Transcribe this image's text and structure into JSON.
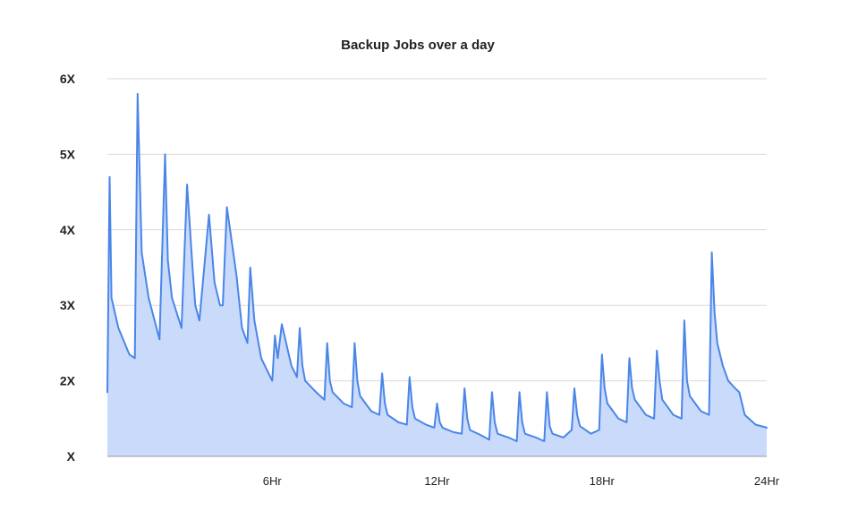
{
  "chart_data": {
    "type": "area",
    "title": "Backup Jobs over a day",
    "xlabel": "",
    "ylabel": "",
    "xlim": [
      0,
      24
    ],
    "ylim": [
      0,
      5
    ],
    "grid": true,
    "legend": "none",
    "y_ticks": [
      {
        "value": 0,
        "label": "X"
      },
      {
        "value": 1,
        "label": "2X"
      },
      {
        "value": 2,
        "label": "3X"
      },
      {
        "value": 3,
        "label": "4X"
      },
      {
        "value": 4,
        "label": "5X"
      },
      {
        "value": 5,
        "label": "6X"
      }
    ],
    "x_ticks": [
      {
        "value": 6,
        "label": "6Hr"
      },
      {
        "value": 12,
        "label": "12Hr"
      },
      {
        "value": 18,
        "label": "18Hr"
      },
      {
        "value": 24,
        "label": "24Hr"
      }
    ],
    "colors": {
      "line": "#4a86e8",
      "fill": "#c9dafb",
      "grid": "#dadada",
      "axis": "#9a9a9a",
      "text": "#222222"
    },
    "series": [
      {
        "x": [
          0.0,
          0.08,
          0.15,
          0.4,
          0.8,
          1.0,
          1.1,
          1.25,
          1.5,
          1.9,
          2.1,
          2.2,
          2.35,
          2.7,
          2.9,
          3.1,
          3.2,
          3.35,
          3.7,
          3.9,
          4.1,
          4.2,
          4.35,
          4.7,
          4.9,
          5.1,
          5.2,
          5.35,
          5.6,
          5.8,
          6.0,
          6.1,
          6.2,
          6.35,
          6.7,
          6.9,
          7.0,
          7.1,
          7.2,
          7.6,
          7.9,
          8.0,
          8.1,
          8.2,
          8.6,
          8.9,
          9.0,
          9.1,
          9.2,
          9.6,
          9.9,
          10.0,
          10.1,
          10.2,
          10.6,
          10.9,
          11.0,
          11.1,
          11.2,
          11.6,
          11.9,
          12.0,
          12.1,
          12.2,
          12.6,
          12.9,
          13.0,
          13.1,
          13.2,
          13.6,
          13.9,
          14.0,
          14.1,
          14.2,
          14.6,
          14.9,
          15.0,
          15.1,
          15.2,
          15.6,
          15.9,
          16.0,
          16.1,
          16.2,
          16.6,
          16.9,
          17.0,
          17.1,
          17.2,
          17.6,
          17.9,
          18.0,
          18.1,
          18.2,
          18.6,
          18.9,
          19.0,
          19.1,
          19.2,
          19.6,
          19.9,
          20.0,
          20.1,
          20.2,
          20.6,
          20.9,
          21.0,
          21.1,
          21.2,
          21.6,
          21.9,
          22.0,
          22.1,
          22.2,
          22.4,
          22.6,
          22.85,
          23.0,
          23.1,
          23.2,
          23.6,
          24.0
        ],
        "values": [
          0.85,
          3.7,
          2.1,
          1.7,
          1.35,
          1.3,
          4.8,
          2.7,
          2.1,
          1.55,
          4.0,
          2.6,
          2.1,
          1.7,
          3.6,
          2.5,
          2.0,
          1.8,
          3.2,
          2.3,
          2.0,
          2.0,
          3.3,
          2.4,
          1.7,
          1.5,
          2.5,
          1.8,
          1.3,
          1.15,
          1.0,
          1.6,
          1.3,
          1.75,
          1.2,
          1.05,
          1.7,
          1.2,
          1.0,
          0.85,
          0.75,
          1.5,
          1.0,
          0.85,
          0.7,
          0.65,
          1.5,
          1.0,
          0.8,
          0.6,
          0.55,
          1.1,
          0.7,
          0.55,
          0.45,
          0.42,
          1.05,
          0.65,
          0.5,
          0.42,
          0.38,
          0.7,
          0.45,
          0.38,
          0.32,
          0.3,
          0.9,
          0.5,
          0.35,
          0.28,
          0.22,
          0.85,
          0.45,
          0.3,
          0.25,
          0.2,
          0.85,
          0.45,
          0.3,
          0.25,
          0.2,
          0.85,
          0.4,
          0.3,
          0.25,
          0.35,
          0.9,
          0.55,
          0.4,
          0.3,
          0.35,
          1.35,
          0.9,
          0.7,
          0.5,
          0.45,
          1.3,
          0.9,
          0.75,
          0.55,
          0.5,
          1.4,
          1.0,
          0.75,
          0.55,
          0.5,
          1.8,
          1.0,
          0.8,
          0.6,
          0.55,
          2.7,
          1.9,
          1.5,
          1.2,
          1.0,
          0.9,
          0.85,
          0.7,
          0.55,
          0.42,
          0.38
        ]
      }
    ]
  }
}
